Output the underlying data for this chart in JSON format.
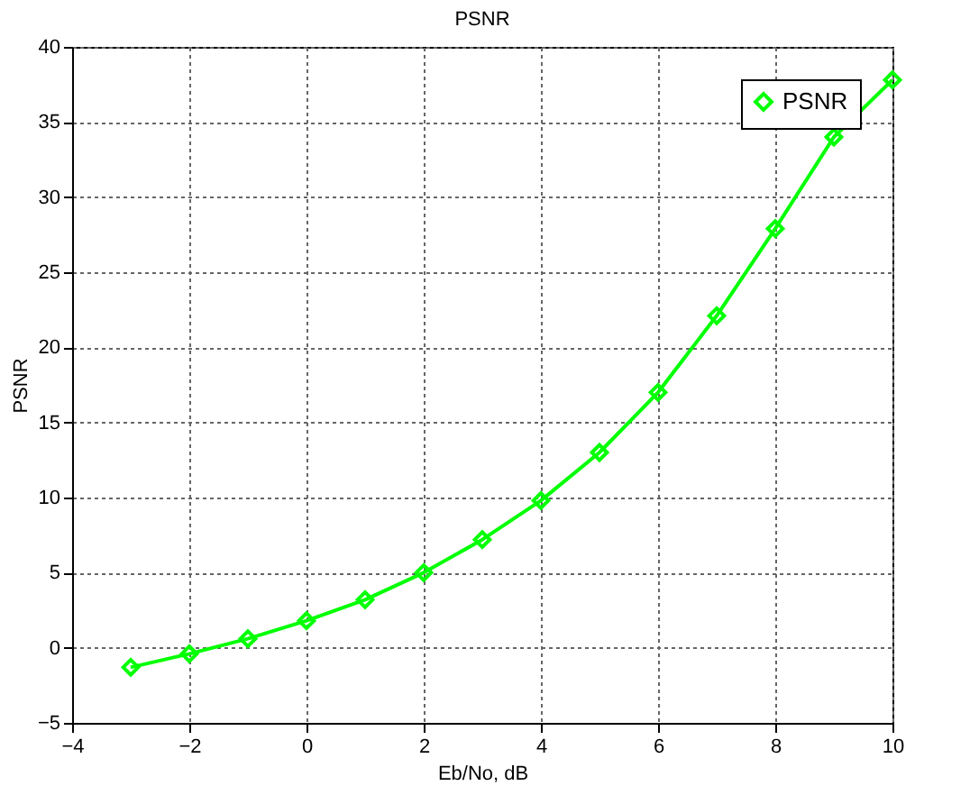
{
  "chart_data": {
    "type": "line",
    "title": "PSNR",
    "xlabel": "Eb/No, dB",
    "ylabel": "PSNR",
    "x": [
      -3,
      -2,
      -1,
      0,
      1,
      2,
      3,
      4,
      5,
      6,
      7,
      8,
      9,
      10
    ],
    "series": [
      {
        "name": "PSNR",
        "color": "#00ff00",
        "values": [
          -1.3,
          -0.4,
          0.6,
          1.8,
          3.2,
          5.0,
          7.2,
          9.8,
          13.0,
          17.0,
          22.1,
          27.9,
          34.0,
          37.8
        ]
      }
    ],
    "xlim": [
      -4,
      10
    ],
    "xticks": [
      -4,
      -2,
      0,
      2,
      4,
      6,
      8,
      10
    ],
    "ylim": [
      -5,
      40
    ],
    "yticks": [
      -5,
      0,
      5,
      10,
      15,
      20,
      25,
      30,
      35,
      40
    ],
    "grid": true,
    "legend": "top right",
    "marker": "diamond",
    "line_style": "solid"
  }
}
